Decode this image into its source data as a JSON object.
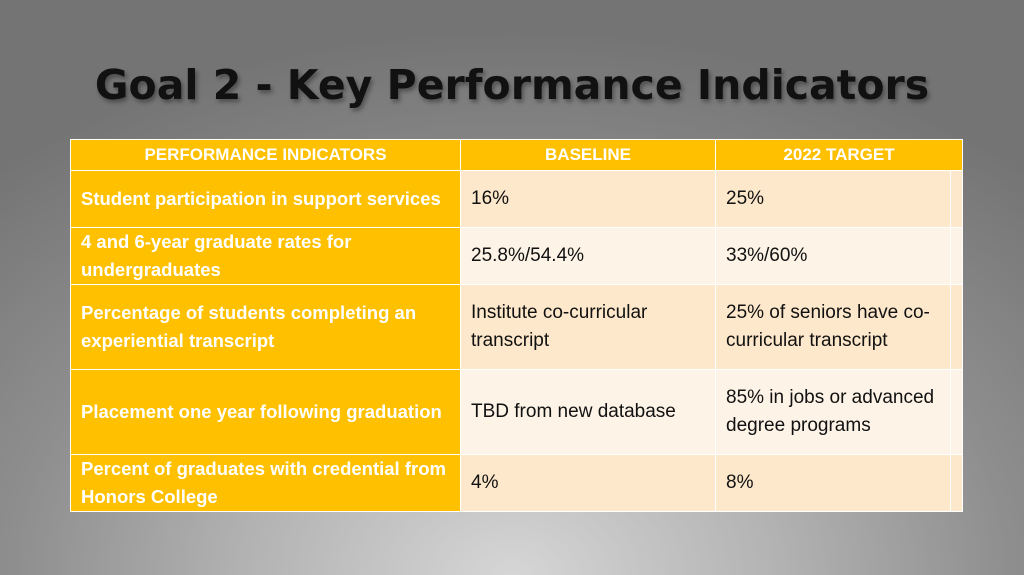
{
  "slide": {
    "title": "Goal 2 -  Key Performance Indicators"
  },
  "table": {
    "headers": [
      "PERFORMANCE INDICATORS",
      "BASELINE",
      "2022 TARGET"
    ],
    "rows": [
      {
        "indicator": "Student participation in support services",
        "baseline": "16%",
        "target": "25%"
      },
      {
        "indicator": "4 and 6-year graduate rates for undergraduates",
        "baseline": "25.8%/54.4%",
        "target": "33%/60%"
      },
      {
        "indicator": "Percentage of students completing an experiential transcript",
        "baseline": "Institute co-curricular transcript",
        "target": "25% of seniors have co-curricular transcript"
      },
      {
        "indicator": "Placement one year following graduation",
        "baseline": "TBD from new database",
        "target": "85% in jobs or advanced degree programs"
      },
      {
        "indicator": "Percent of graduates with credential from Honors College",
        "baseline": "4%",
        "target": "8%"
      }
    ]
  },
  "colors": {
    "header_and_label_fill": "#ffc000",
    "row_fill_odd": "#fde8cb",
    "row_fill_even": "#fdf3e6",
    "title_text": "#111111"
  }
}
